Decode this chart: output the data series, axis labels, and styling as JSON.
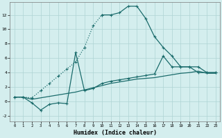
{
  "xlabel": "Humidex (Indice chaleur)",
  "bg_color": "#d4eeee",
  "grid_color": "#aed4d4",
  "line_color": "#1a6b6b",
  "xlim": [
    -0.5,
    23.5
  ],
  "ylim": [
    -2.8,
    13.8
  ],
  "xticks": [
    0,
    1,
    2,
    3,
    4,
    5,
    6,
    7,
    8,
    9,
    10,
    11,
    12,
    13,
    14,
    15,
    16,
    17,
    18,
    19,
    20,
    21,
    22,
    23
  ],
  "yticks": [
    -2,
    0,
    2,
    4,
    6,
    8,
    10,
    12
  ],
  "dotted_x": [
    0,
    1,
    2,
    3,
    4,
    5,
    6,
    7,
    8,
    9,
    10
  ],
  "dotted_y": [
    0.6,
    0.6,
    0.5,
    1.5,
    2.5,
    3.5,
    4.5,
    5.5,
    7.5,
    10.5,
    12.0
  ],
  "peak_x": [
    10,
    11,
    12,
    13,
    14,
    15,
    16,
    17,
    18,
    19,
    20,
    21,
    22,
    23
  ],
  "peak_y": [
    12.0,
    12.0,
    12.3,
    13.2,
    13.2,
    11.5,
    9.0,
    7.5,
    6.3,
    4.8,
    4.8,
    4.0,
    4.0,
    4.0
  ],
  "spiky_x": [
    0,
    1,
    2,
    3,
    4,
    5,
    6,
    7,
    8,
    9,
    10,
    11,
    12,
    13,
    14,
    15,
    16,
    17,
    18,
    19,
    20,
    21,
    22,
    23
  ],
  "spiky_y": [
    0.6,
    0.6,
    -0.2,
    -1.2,
    -0.4,
    -0.2,
    -0.3,
    6.8,
    1.5,
    1.8,
    2.5,
    2.8,
    3.0,
    3.2,
    3.4,
    3.6,
    3.8,
    6.3,
    4.8,
    4.8,
    4.8,
    4.8,
    4.0,
    4.0
  ],
  "smooth_x": [
    0,
    1,
    2,
    3,
    4,
    5,
    6,
    7,
    8,
    9,
    10,
    11,
    12,
    13,
    14,
    15,
    16,
    17,
    18,
    19,
    20,
    21,
    22,
    23
  ],
  "smooth_y": [
    0.6,
    0.6,
    0.3,
    0.5,
    0.7,
    0.9,
    1.1,
    1.3,
    1.6,
    1.9,
    2.2,
    2.5,
    2.7,
    2.9,
    3.1,
    3.2,
    3.3,
    3.5,
    3.7,
    3.9,
    4.0,
    4.2,
    3.9,
    3.9
  ]
}
